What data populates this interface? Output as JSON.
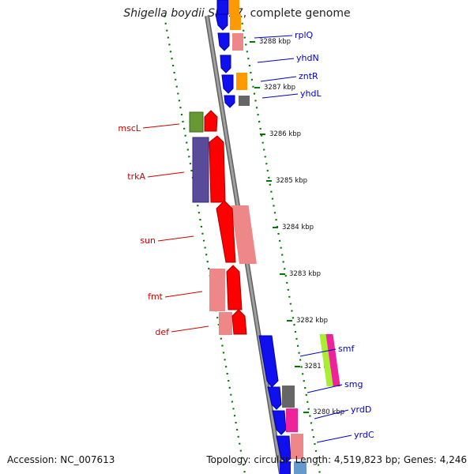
{
  "map": {
    "organism": "Shigella boydii Sb227",
    "title_suffix": ", complete genome",
    "accession": "Accession: NC_007613",
    "summary": "Topology: circular; Length: 4,519,823 bp; Genes: 4,246",
    "colors": {
      "forward_label": "#0000cc",
      "reverse_label": "#cc0000",
      "ticks": "#007700",
      "backbone": "#888888"
    },
    "ticks": [
      {
        "label": "3288 kbp"
      },
      {
        "label": "3287 kbp"
      },
      {
        "label": "3286 kbp"
      },
      {
        "label": "3285 kbp"
      },
      {
        "label": "3284 kbp"
      },
      {
        "label": "3283 kbp"
      },
      {
        "label": "3282 kbp"
      },
      {
        "label": "3281 kbp"
      },
      {
        "label": "3280 kbp"
      }
    ],
    "forward_genes": [
      {
        "name": "rplQ"
      },
      {
        "name": "yhdN"
      },
      {
        "name": "zntR"
      },
      {
        "name": "yhdL"
      },
      {
        "name": "smf"
      },
      {
        "name": "smg"
      },
      {
        "name": "yrdD"
      },
      {
        "name": "yrdC"
      }
    ],
    "reverse_genes": [
      {
        "name": "mscL"
      },
      {
        "name": "trkA"
      },
      {
        "name": "sun"
      },
      {
        "name": "fmt"
      },
      {
        "name": "def"
      }
    ]
  }
}
